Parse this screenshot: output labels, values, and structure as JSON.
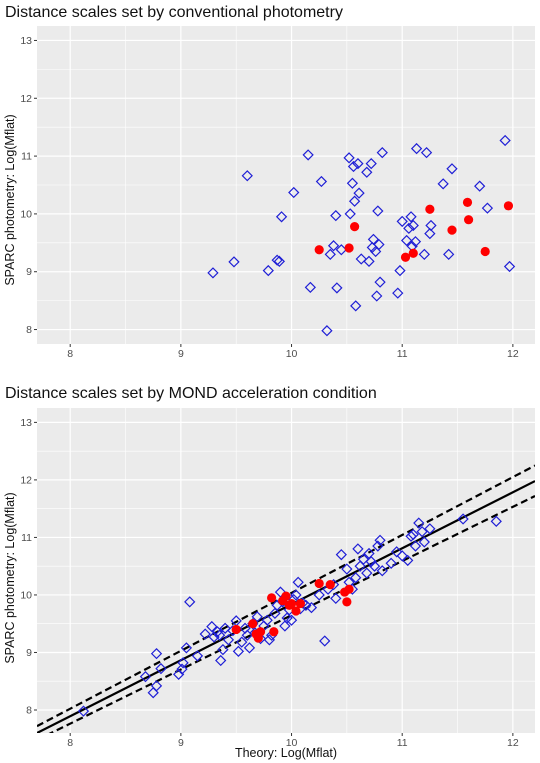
{
  "chart_data": [
    {
      "type": "scatter",
      "title": "Distance scales set by conventional photometry",
      "ylabel": "SPARC photometry:  Log(Mflat)",
      "xlabel": "",
      "xlim": [
        7.7,
        12.2
      ],
      "ylim": [
        7.75,
        13.25
      ],
      "x_ticks": [
        "8",
        "9",
        "10",
        "11",
        "12"
      ],
      "y_ticks": [
        "8",
        "9",
        "10",
        "11",
        "12",
        "13"
      ],
      "grid": true,
      "colors": {
        "panel": "#ebebeb",
        "grid": "#ffffff",
        "open": "#1f1fd6",
        "filled": "#ff0000"
      },
      "series": [
        {
          "marker": "open-diamond",
          "points": [
            [
              9.29,
              8.98
            ],
            [
              9.48,
              9.17
            ],
            [
              9.6,
              10.66
            ],
            [
              9.79,
              9.02
            ],
            [
              9.87,
              9.2
            ],
            [
              9.89,
              9.18
            ],
            [
              9.91,
              9.95
            ],
            [
              10.02,
              10.37
            ],
            [
              10.15,
              11.02
            ],
            [
              10.17,
              8.73
            ],
            [
              10.27,
              10.56
            ],
            [
              10.32,
              7.98
            ],
            [
              10.35,
              9.3
            ],
            [
              10.38,
              9.45
            ],
            [
              10.4,
              9.97
            ],
            [
              10.41,
              8.72
            ],
            [
              10.45,
              9.38
            ],
            [
              10.52,
              10.97
            ],
            [
              10.53,
              10.0
            ],
            [
              10.55,
              10.53
            ],
            [
              10.56,
              10.82
            ],
            [
              10.57,
              10.22
            ],
            [
              10.58,
              8.41
            ],
            [
              10.6,
              10.87
            ],
            [
              10.61,
              10.36
            ],
            [
              10.63,
              9.22
            ],
            [
              10.68,
              10.72
            ],
            [
              10.7,
              9.18
            ],
            [
              10.72,
              10.87
            ],
            [
              10.73,
              9.42
            ],
            [
              10.74,
              9.56
            ],
            [
              10.76,
              9.35
            ],
            [
              10.77,
              8.58
            ],
            [
              10.78,
              10.05
            ],
            [
              10.79,
              9.47
            ],
            [
              10.8,
              8.82
            ],
            [
              10.82,
              11.06
            ],
            [
              10.96,
              8.63
            ],
            [
              10.98,
              9.02
            ],
            [
              11.0,
              9.87
            ],
            [
              11.04,
              9.54
            ],
            [
              11.06,
              9.75
            ],
            [
              11.08,
              9.95
            ],
            [
              11.09,
              9.44
            ],
            [
              11.1,
              9.8
            ],
            [
              11.12,
              9.52
            ],
            [
              11.13,
              11.13
            ],
            [
              11.2,
              9.3
            ],
            [
              11.22,
              11.06
            ],
            [
              11.25,
              9.66
            ],
            [
              11.26,
              9.8
            ],
            [
              11.37,
              10.52
            ],
            [
              11.42,
              9.3
            ],
            [
              11.45,
              10.78
            ],
            [
              11.7,
              10.48
            ],
            [
              11.77,
              10.1
            ],
            [
              11.93,
              11.27
            ],
            [
              11.97,
              9.09
            ]
          ]
        },
        {
          "marker": "filled-circle",
          "points": [
            [
              10.25,
              9.38
            ],
            [
              10.52,
              9.41
            ],
            [
              10.57,
              9.78
            ],
            [
              11.03,
              9.25
            ],
            [
              11.1,
              9.32
            ],
            [
              11.25,
              10.08
            ],
            [
              11.45,
              9.72
            ],
            [
              11.59,
              10.2
            ],
            [
              11.6,
              9.9
            ],
            [
              11.75,
              9.35
            ],
            [
              11.96,
              10.14
            ]
          ]
        }
      ]
    },
    {
      "type": "scatter",
      "title": "Distance scales set by MOND acceleration condition",
      "ylabel": "SPARC photometry:  Log(Mflat)",
      "xlabel": "Theory:  Log(Mflat)",
      "xlim": [
        7.7,
        12.2
      ],
      "ylim": [
        7.6,
        13.25
      ],
      "x_ticks": [
        "8",
        "9",
        "10",
        "11",
        "12"
      ],
      "y_ticks": [
        "8",
        "9",
        "10",
        "11",
        "12",
        "13"
      ],
      "grid": true,
      "colors": {
        "panel": "#ebebeb",
        "grid": "#ffffff",
        "open": "#1f1fd6",
        "filled": "#ff0000",
        "line": "#000000"
      },
      "lines": [
        {
          "style": "solid",
          "x": [
            7.7,
            12.2
          ],
          "y": [
            7.6,
            11.98
          ]
        },
        {
          "style": "dashed",
          "x": [
            7.7,
            12.2
          ],
          "y": [
            7.72,
            12.25
          ]
        },
        {
          "style": "dashed",
          "x": [
            7.7,
            12.2
          ],
          "y": [
            7.48,
            11.72
          ]
        }
      ],
      "series": [
        {
          "marker": "open-diamond",
          "points": [
            [
              8.12,
              7.98
            ],
            [
              8.68,
              8.58
            ],
            [
              8.75,
              8.3
            ],
            [
              8.78,
              8.42
            ],
            [
              8.78,
              8.98
            ],
            [
              8.82,
              8.72
            ],
            [
              8.98,
              8.62
            ],
            [
              9.01,
              8.71
            ],
            [
              9.02,
              8.82
            ],
            [
              9.05,
              9.08
            ],
            [
              9.08,
              9.88
            ],
            [
              9.15,
              8.94
            ],
            [
              9.22,
              9.32
            ],
            [
              9.28,
              9.45
            ],
            [
              9.3,
              9.27
            ],
            [
              9.33,
              9.36
            ],
            [
              9.35,
              9.3
            ],
            [
              9.36,
              8.86
            ],
            [
              9.38,
              9.05
            ],
            [
              9.4,
              9.42
            ],
            [
              9.43,
              9.22
            ],
            [
              9.47,
              9.38
            ],
            [
              9.5,
              9.55
            ],
            [
              9.52,
              9.02
            ],
            [
              9.55,
              9.18
            ],
            [
              9.58,
              9.42
            ],
            [
              9.6,
              9.3
            ],
            [
              9.62,
              9.08
            ],
            [
              9.65,
              9.5
            ],
            [
              9.67,
              9.34
            ],
            [
              9.69,
              9.62
            ],
            [
              9.72,
              9.24
            ],
            [
              9.75,
              9.46
            ],
            [
              9.78,
              9.56
            ],
            [
              9.8,
              9.22
            ],
            [
              9.82,
              9.3
            ],
            [
              9.85,
              9.68
            ],
            [
              9.87,
              9.82
            ],
            [
              9.9,
              10.05
            ],
            [
              9.92,
              9.88
            ],
            [
              9.94,
              9.46
            ],
            [
              9.96,
              9.6
            ],
            [
              9.98,
              9.74
            ],
            [
              10.0,
              9.56
            ],
            [
              10.02,
              9.92
            ],
            [
              10.04,
              10.0
            ],
            [
              10.06,
              10.22
            ],
            [
              10.08,
              9.76
            ],
            [
              10.1,
              9.86
            ],
            [
              10.13,
              9.82
            ],
            [
              10.18,
              9.78
            ],
            [
              10.25,
              10.0
            ],
            [
              10.3,
              9.2
            ],
            [
              10.33,
              10.1
            ],
            [
              10.38,
              10.18
            ],
            [
              10.4,
              9.94
            ],
            [
              10.45,
              10.7
            ],
            [
              10.5,
              10.45
            ],
            [
              10.52,
              10.22
            ],
            [
              10.55,
              10.1
            ],
            [
              10.58,
              10.3
            ],
            [
              10.6,
              10.8
            ],
            [
              10.62,
              10.5
            ],
            [
              10.65,
              10.62
            ],
            [
              10.68,
              10.38
            ],
            [
              10.7,
              10.72
            ],
            [
              10.72,
              10.58
            ],
            [
              10.75,
              10.5
            ],
            [
              10.78,
              10.85
            ],
            [
              10.8,
              10.95
            ],
            [
              10.82,
              10.42
            ],
            [
              10.9,
              10.55
            ],
            [
              10.95,
              10.75
            ],
            [
              11.0,
              10.68
            ],
            [
              11.05,
              10.6
            ],
            [
              11.08,
              11.02
            ],
            [
              11.1,
              11.05
            ],
            [
              11.12,
              10.85
            ],
            [
              11.15,
              11.25
            ],
            [
              11.18,
              11.1
            ],
            [
              11.2,
              10.92
            ],
            [
              11.25,
              11.15
            ],
            [
              11.55,
              11.32
            ],
            [
              11.85,
              11.28
            ]
          ]
        },
        {
          "marker": "filled-circle",
          "points": [
            [
              9.5,
              9.4
            ],
            [
              9.65,
              9.5
            ],
            [
              9.68,
              9.32
            ],
            [
              9.7,
              9.25
            ],
            [
              9.72,
              9.36
            ],
            [
              9.82,
              9.95
            ],
            [
              9.84,
              9.36
            ],
            [
              9.92,
              9.9
            ],
            [
              9.95,
              9.98
            ],
            [
              9.98,
              9.82
            ],
            [
              10.0,
              9.85
            ],
            [
              10.04,
              9.72
            ],
            [
              10.08,
              9.85
            ],
            [
              10.25,
              10.2
            ],
            [
              10.35,
              10.18
            ],
            [
              10.48,
              10.05
            ],
            [
              10.5,
              9.88
            ],
            [
              10.52,
              10.1
            ]
          ]
        }
      ]
    }
  ]
}
